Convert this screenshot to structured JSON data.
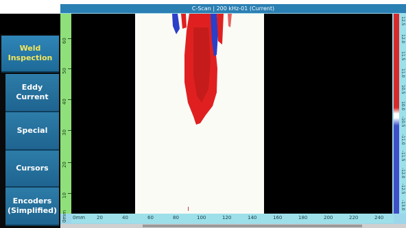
{
  "window": {
    "title": "C-Scan | 200 kHz-01 (Current)"
  },
  "sidebar": {
    "items": [
      {
        "label": "Weld Inspection",
        "active": true
      },
      {
        "label": "Eddy Current",
        "active": false
      },
      {
        "label": "Special",
        "active": false
      },
      {
        "label": "Cursors",
        "active": false
      },
      {
        "label": "Encoders (Simplified)",
        "active": false
      }
    ]
  },
  "left_axis": {
    "unit_label": "0mm",
    "ticks": [
      "10",
      "20",
      "30",
      "40",
      "50",
      "60"
    ]
  },
  "bottom_axis": {
    "unit_label": "0mm",
    "ticks": [
      "20",
      "40",
      "60",
      "80",
      "100",
      "120",
      "140",
      "160",
      "180",
      "200",
      "220",
      "240"
    ]
  },
  "color_scale": {
    "ticks": [
      "12.5",
      "12.0",
      "11.5",
      "11.0",
      "10.5",
      "10.0",
      "-10.5",
      "-11.0",
      "-11.5",
      "-12.0",
      "-12.5",
      "-13.0"
    ],
    "colors": {
      "positive": "#d62a2a",
      "negative": "#3d50c8",
      "neutral": "#ffffff"
    }
  },
  "colors": {
    "title_bar": "#2a7fb3",
    "button": "#2d7ca8",
    "active_text": "#f6e75a",
    "ruler_green": "#8fe07a",
    "ruler_cyan": "#9de0ea"
  }
}
